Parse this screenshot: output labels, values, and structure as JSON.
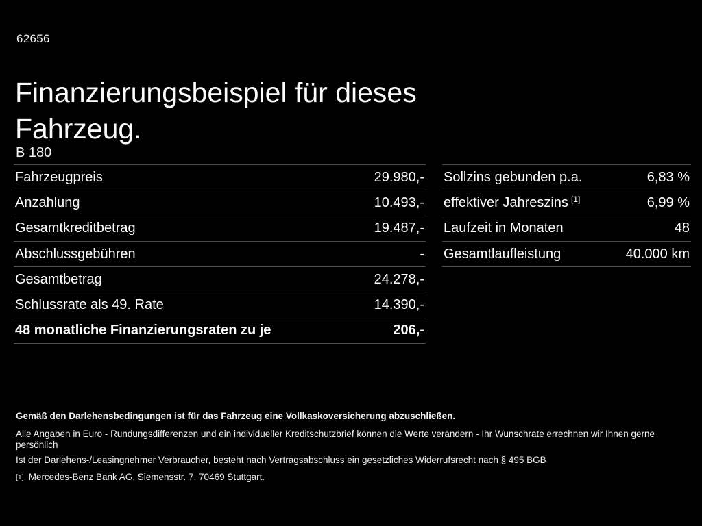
{
  "page": {
    "doc_number": "62656",
    "title": "Finanzierungsbeispiel für dieses Fahrzeug.",
    "model": "B 180"
  },
  "finance_table": {
    "rows": [
      {
        "label": "Fahrzeugpreis",
        "value": "29.980,-"
      },
      {
        "label": "Anzahlung",
        "value": "10.493,-"
      },
      {
        "label": "Gesamtkreditbetrag",
        "value": "19.487,-"
      },
      {
        "label": "Abschlussgebühren",
        "value": "-"
      },
      {
        "label": "Gesamtbetrag",
        "value": "24.278,-"
      },
      {
        "label": "Schlussrate als 49. Rate",
        "value": "14.390,-"
      },
      {
        "label": "48 monatliche Finanzierungsraten zu je",
        "value": "206,-"
      }
    ]
  },
  "conditions_table": {
    "rows": [
      {
        "label": "Sollzins gebunden p.a.",
        "value": "6,83 %"
      },
      {
        "label": "effektiver Jahreszins",
        "footnote_marker": "[1]",
        "value": "6,99 %"
      },
      {
        "label": "Laufzeit in Monaten",
        "value": "48"
      },
      {
        "label": "Gesamtlaufleistung",
        "value": "40.000 km"
      }
    ]
  },
  "footer": {
    "insurance_note": "Gemäß den Darlehensbedingungen ist für das Fahrzeug eine Vollkaskoversicherung abzuschließen.",
    "disclaimer_line1": "Alle Angaben in Euro - Rundungsdifferenzen und ein individueller Kreditschutzbrief können die Werte verändern - Ihr Wunschrate errechnen wir Ihnen gerne persönlich",
    "disclaimer_line2": "Ist der Darlehens-/Leasingnehmer Verbraucher, besteht nach Vertragsabschluss ein gesetzliches Widerrufsrecht nach § 495 BGB",
    "footnote_marker": "[1]",
    "footnote_text": "Mercedes-Benz Bank AG, Siemensstr. 7, 70469 Stuttgart."
  },
  "colors": {
    "background": "#000000",
    "text": "#fdfdfd",
    "divider": "#4b4b4b"
  }
}
